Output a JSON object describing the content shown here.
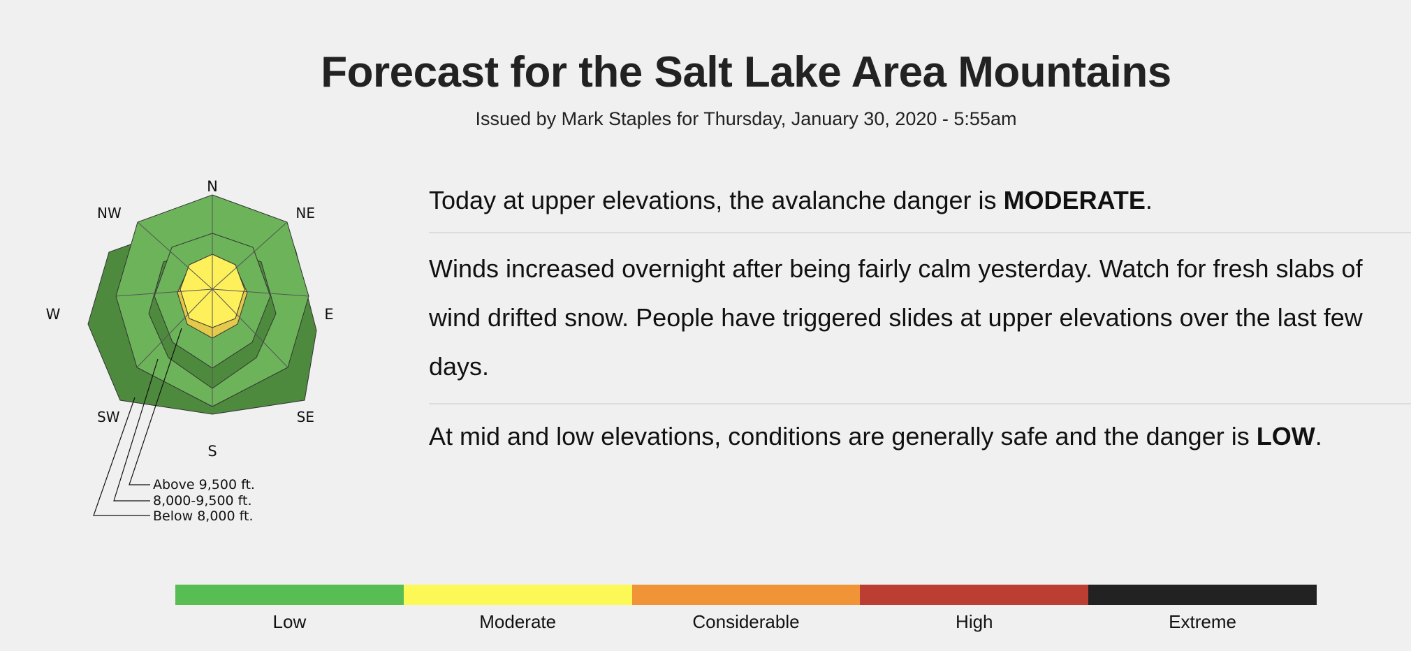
{
  "header": {
    "title": "Forecast for the Salt Lake Area Mountains",
    "subtitle": "Issued by Mark Staples for Thursday, January 30, 2020 - 5:55am"
  },
  "rose": {
    "directions": [
      "N",
      "NE",
      "E",
      "SE",
      "S",
      "SW",
      "W",
      "NW"
    ],
    "legend": [
      "Above 9,500 ft.",
      "8,000-9,500 ft.",
      "Below 8,000 ft."
    ],
    "danger_by_elevation": {
      "above_9500": "Moderate",
      "8000_9500": "Low",
      "below_8000": "Low"
    },
    "colors": {
      "low_fill": "#6cb35a",
      "low_side": "#4e8a3e",
      "moderate_fill": "#fdf05a",
      "moderate_side": "#e4c94a"
    }
  },
  "forecast": {
    "upper_pre": "Today at upper elevations, the avalanche danger is ",
    "upper_rating": "MODERATE",
    "upper_post": ".",
    "discussion": "Winds increased overnight after being fairly calm yesterday. Watch for fresh slabs of wind drifted snow. People have triggered slides at upper elevations over the last few days.",
    "lower_pre": "At mid and low elevations, conditions are generally safe and the danger is ",
    "lower_rating": "LOW",
    "lower_post": "."
  },
  "danger_scale": [
    {
      "label": "Low",
      "color": "#58bd52"
    },
    {
      "label": "Moderate",
      "color": "#fcf956"
    },
    {
      "label": "Considerable",
      "color": "#f09437"
    },
    {
      "label": "High",
      "color": "#bc3d32"
    },
    {
      "label": "Extreme",
      "color": "#222222"
    }
  ]
}
